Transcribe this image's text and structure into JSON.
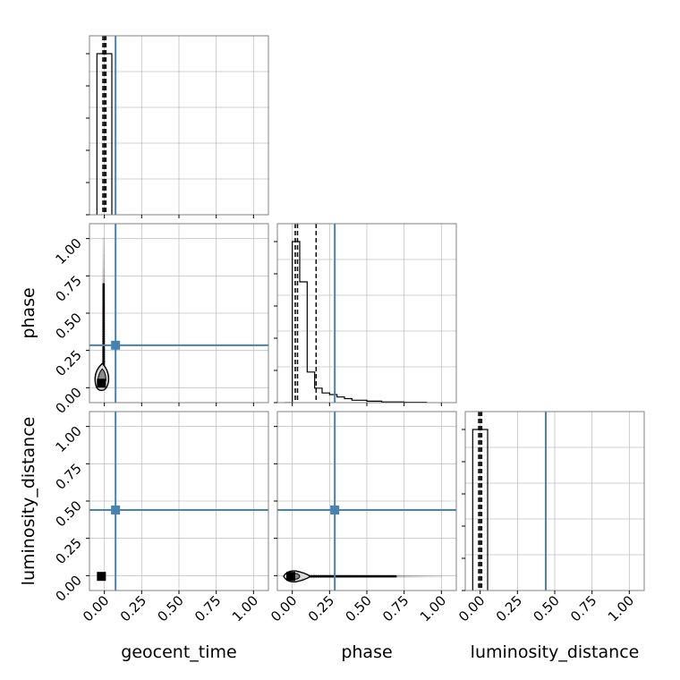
{
  "chart_data": {
    "type": "corner",
    "parameters": [
      "geocent_time",
      "phase",
      "luminosity_distance"
    ],
    "axis_range": [
      -0.1,
      1.1
    ],
    "ticks": [
      0,
      0.25,
      0.5,
      0.75,
      1.0
    ],
    "tick_labels": [
      "0.00",
      "0.25",
      "0.50",
      "0.75",
      "1.00"
    ],
    "grid": true,
    "colors": {
      "truth": "#4682b4",
      "hist": "#000000",
      "quantile": "#000000",
      "grid": "#c0c0c0",
      "frame": "#808080"
    },
    "truths": {
      "geocent_time": 0.075,
      "phase": 0.285,
      "luminosity_distance": 0.44
    },
    "quantiles": {
      "geocent_time": [
        -0.01,
        0.0,
        0.01
      ],
      "phase": [
        0.02,
        0.035,
        0.16
      ],
      "luminosity_distance": [
        -0.01,
        0.0,
        0.01
      ]
    },
    "histograms": {
      "geocent_time": {
        "edges": [
          -0.05,
          0.0,
          0.05
        ],
        "counts": [
          1.0,
          1.0
        ]
      },
      "phase": {
        "edges": [
          -0.05,
          0.0,
          0.05,
          0.1,
          0.15,
          0.2,
          0.25,
          0.3,
          0.35,
          0.4,
          0.5,
          0.6,
          0.75,
          0.9
        ],
        "counts": [
          0.0,
          1.0,
          0.75,
          0.19,
          0.09,
          0.06,
          0.05,
          0.035,
          0.025,
          0.015,
          0.009,
          0.004,
          0.002
        ]
      },
      "luminosity_distance": {
        "edges": [
          -0.05,
          0.0,
          0.05
        ],
        "counts": [
          1.0,
          1.0
        ]
      }
    },
    "scatter_2d": [
      {
        "x_param": "geocent_time",
        "y_param": "phase",
        "density_center": [
          -0.02,
          0.03
        ],
        "sample_spread": {
          "axis": "y",
          "from": 0.1,
          "to": 1.0,
          "at": -0.005
        }
      },
      {
        "x_param": "geocent_time",
        "y_param": "luminosity_distance",
        "density_center": [
          -0.02,
          -0.005
        ],
        "sample_spread": null
      },
      {
        "x_param": "phase",
        "y_param": "luminosity_distance",
        "density_center": [
          -0.01,
          -0.005
        ],
        "sample_spread": {
          "axis": "x",
          "from": 0.1,
          "to": 1.0,
          "at": -0.005
        }
      }
    ]
  }
}
